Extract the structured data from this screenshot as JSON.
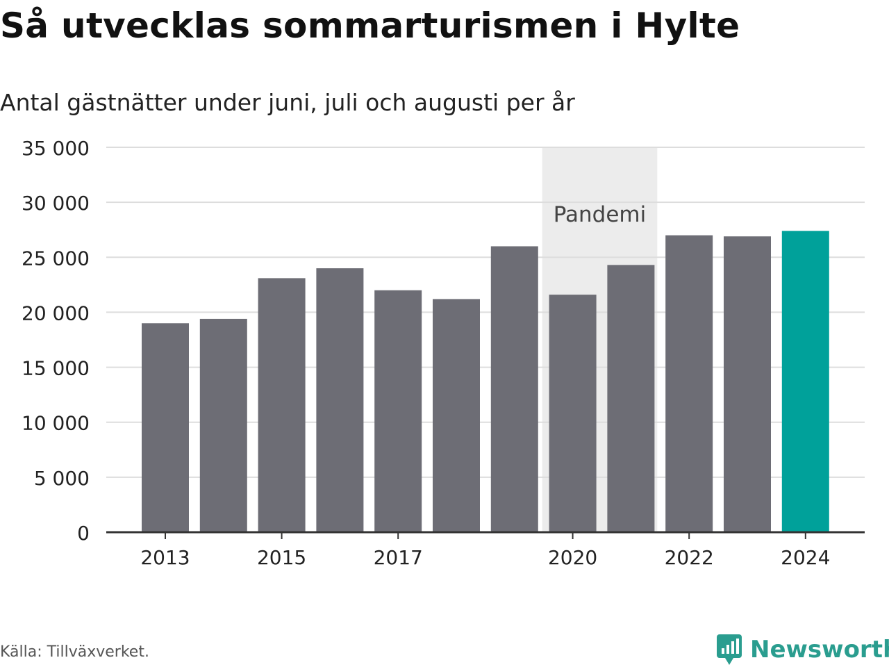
{
  "title": "Så utvecklas sommarturismen i Hylte",
  "subtitle": "Antal gästnätter under juni, juli och augusti per år",
  "source": "Källa: Tillväxverket.",
  "brand": {
    "name": "Newsworthy",
    "icon": "newsworthy-logo-icon",
    "color": "#2a9d8f"
  },
  "colors": {
    "bar": "#6d6d75",
    "highlight": "#00a19a",
    "pandemic_band": "#ececec",
    "grid": "#dddddd",
    "axis": "#333333"
  },
  "chart_data": {
    "type": "bar",
    "categories": [
      "2013",
      "2014",
      "2015",
      "2016",
      "2017",
      "2018",
      "2019",
      "2020",
      "2021",
      "2022",
      "2023",
      "2024"
    ],
    "values": [
      19000,
      19400,
      23100,
      24000,
      22000,
      21200,
      26000,
      21600,
      24300,
      27000,
      26900,
      27400
    ],
    "highlight_category": "2024",
    "x_tick_labels": [
      "2013",
      "2015",
      "2017",
      "2020",
      "2022",
      "2024"
    ],
    "y_ticks": [
      0,
      5000,
      10000,
      15000,
      20000,
      25000,
      30000,
      35000
    ],
    "y_tick_labels": [
      "0",
      "5 000",
      "10 000",
      "15 000",
      "20 000",
      "25 000",
      "30 000",
      "35 000"
    ],
    "ylim": [
      0,
      35000
    ],
    "grid": true,
    "annotation": {
      "label": "Pandemi",
      "from": "2020",
      "to": "2021"
    },
    "xlabel": "",
    "ylabel": ""
  }
}
